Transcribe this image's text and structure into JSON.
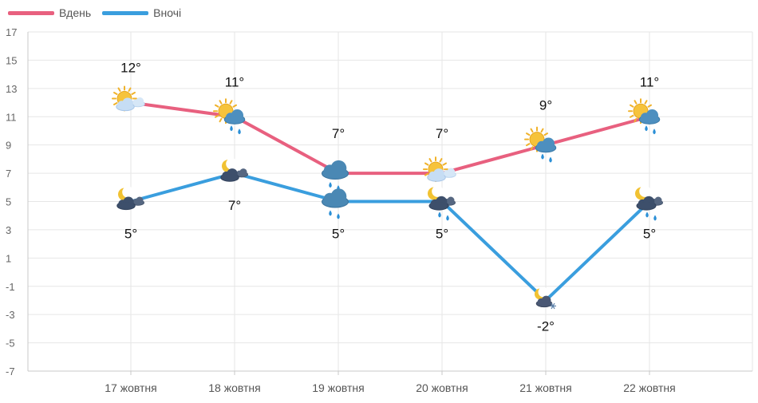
{
  "chart_data": {
    "type": "line",
    "categories": [
      "17 жовтня",
      "18 жовтня",
      "19 жовтня",
      "20 жовтня",
      "21 жовтня",
      "22 жовтня"
    ],
    "series": [
      {
        "name": "Вдень",
        "color": "#e8607f",
        "values": [
          12,
          11,
          7,
          7,
          9,
          11
        ],
        "labels": [
          "12°",
          "11°",
          "7°",
          "7°",
          "9°",
          "11°"
        ],
        "icons": [
          "partly-cloudy-sun-icon",
          "sun-cloud-rain-icon",
          "cloud-rain-icon",
          "partly-cloudy-sun-icon",
          "sun-cloud-rain-icon",
          "sun-cloud-rain-icon"
        ]
      },
      {
        "name": "Вночі",
        "color": "#3a9ede",
        "values": [
          5,
          7,
          5,
          5,
          -2,
          5
        ],
        "labels": [
          "5°",
          "7°",
          "5°",
          "5°",
          "-2°",
          "5°"
        ],
        "icons": [
          "moon-dark-cloud-icon",
          "moon-dark-cloud-icon",
          "cloud-rain-icon",
          "moon-dark-cloud-rain-icon",
          "moon-cloud-snow-icon",
          "moon-dark-cloud-rain-icon"
        ]
      }
    ],
    "y_ticks": [
      17,
      15,
      13,
      11,
      9,
      7,
      5,
      3,
      1,
      -1,
      -3,
      -5,
      -7
    ],
    "ylim": [
      -7,
      17
    ],
    "grid": true,
    "legend": "top-left"
  }
}
